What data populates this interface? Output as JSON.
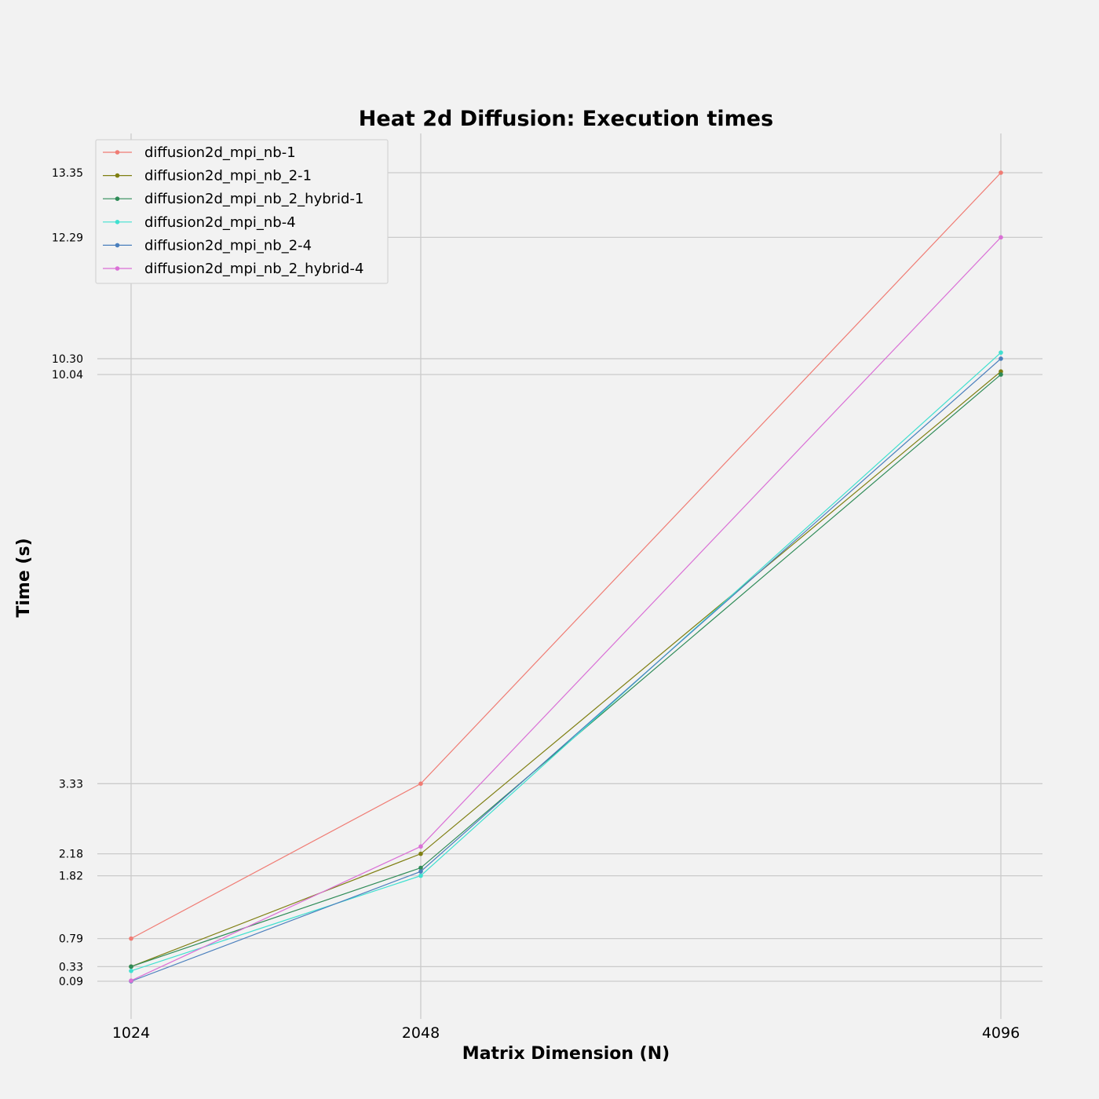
{
  "chart_data": {
    "type": "line",
    "title": "Heat 2d Diffusion: Execution times",
    "xlabel": "Matrix Dimension (N)",
    "ylabel": "Time (s)",
    "x": [
      1024,
      2048,
      4096
    ],
    "x_tick_labels": [
      "1024",
      "2048",
      "4096"
    ],
    "y_ticks": [
      0.09,
      0.33,
      0.79,
      1.82,
      2.18,
      3.33,
      10.04,
      10.3,
      12.29,
      13.35
    ],
    "y_tick_labels": [
      "0.09",
      "0.33",
      "0.79",
      "1.82",
      "2.18",
      "3.33",
      "10.04",
      "10.30",
      "12.29",
      "13.35"
    ],
    "ylim": [
      -0.5,
      14
    ],
    "xlim": [
      900,
      4300
    ],
    "grid": true,
    "legend_position": "top-left",
    "series": [
      {
        "name": "diffusion2d_mpi_nb-1",
        "color": "#f07c74",
        "values": [
          0.79,
          3.33,
          13.35
        ]
      },
      {
        "name": "diffusion2d_mpi_nb_2-1",
        "color": "#7f7f12",
        "values": [
          0.33,
          2.18,
          10.09
        ]
      },
      {
        "name": "diffusion2d_mpi_nb_2_hybrid-1",
        "color": "#2e8b57",
        "values": [
          0.33,
          1.95,
          10.04
        ]
      },
      {
        "name": "diffusion2d_mpi_nb-4",
        "color": "#40e0d0",
        "values": [
          0.26,
          1.82,
          10.4
        ]
      },
      {
        "name": "diffusion2d_mpi_nb_2-4",
        "color": "#4a7fbd",
        "values": [
          0.09,
          1.89,
          10.3
        ]
      },
      {
        "name": "diffusion2d_mpi_nb_2_hybrid-4",
        "color": "#da70d6",
        "values": [
          0.1,
          2.3,
          12.29
        ]
      }
    ]
  }
}
